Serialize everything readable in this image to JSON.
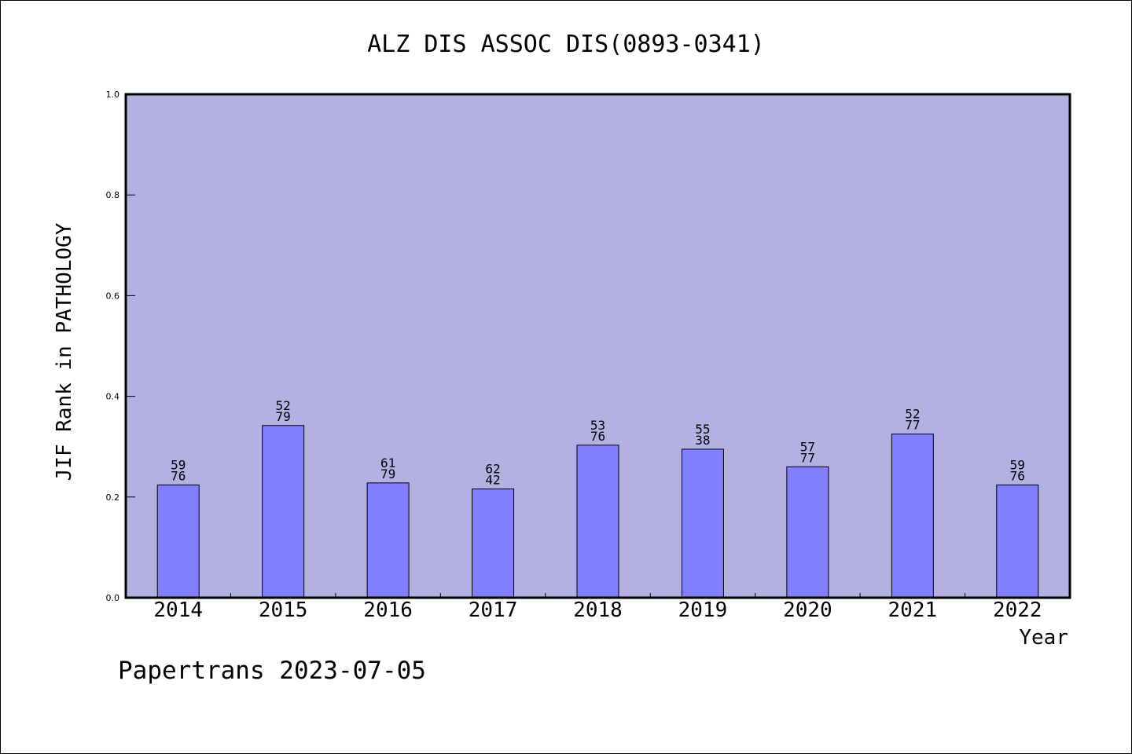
{
  "chart_data": {
    "type": "bar",
    "title": "ALZ DIS ASSOC DIS(0893-0341)",
    "xlabel": "Year",
    "ylabel": "JIF Rank in PATHOLOGY",
    "ylim": [
      0,
      1.0
    ],
    "yticks": [
      "0.0",
      "0.2",
      "0.4",
      "0.6",
      "0.8",
      "1.0"
    ],
    "categories": [
      "2014",
      "2015",
      "2016",
      "2017",
      "2018",
      "2019",
      "2020",
      "2021",
      "2022"
    ],
    "values": [
      0.224,
      0.342,
      0.228,
      0.216,
      0.303,
      0.295,
      0.26,
      0.325,
      0.224
    ],
    "labels_top": [
      "59",
      "52",
      "61",
      "62",
      "53",
      "55",
      "57",
      "52",
      "59"
    ],
    "labels_bottom": [
      "76",
      "79",
      "79",
      "42",
      "76",
      "38",
      "77",
      "77",
      "76"
    ],
    "grid": false,
    "legend": "none",
    "colors": {
      "plot_bg": "#b5b0e2",
      "bar": "#8080ff",
      "bar_edge": "#000000"
    }
  },
  "footer": {
    "text": "Papertrans 2023-07-05"
  }
}
